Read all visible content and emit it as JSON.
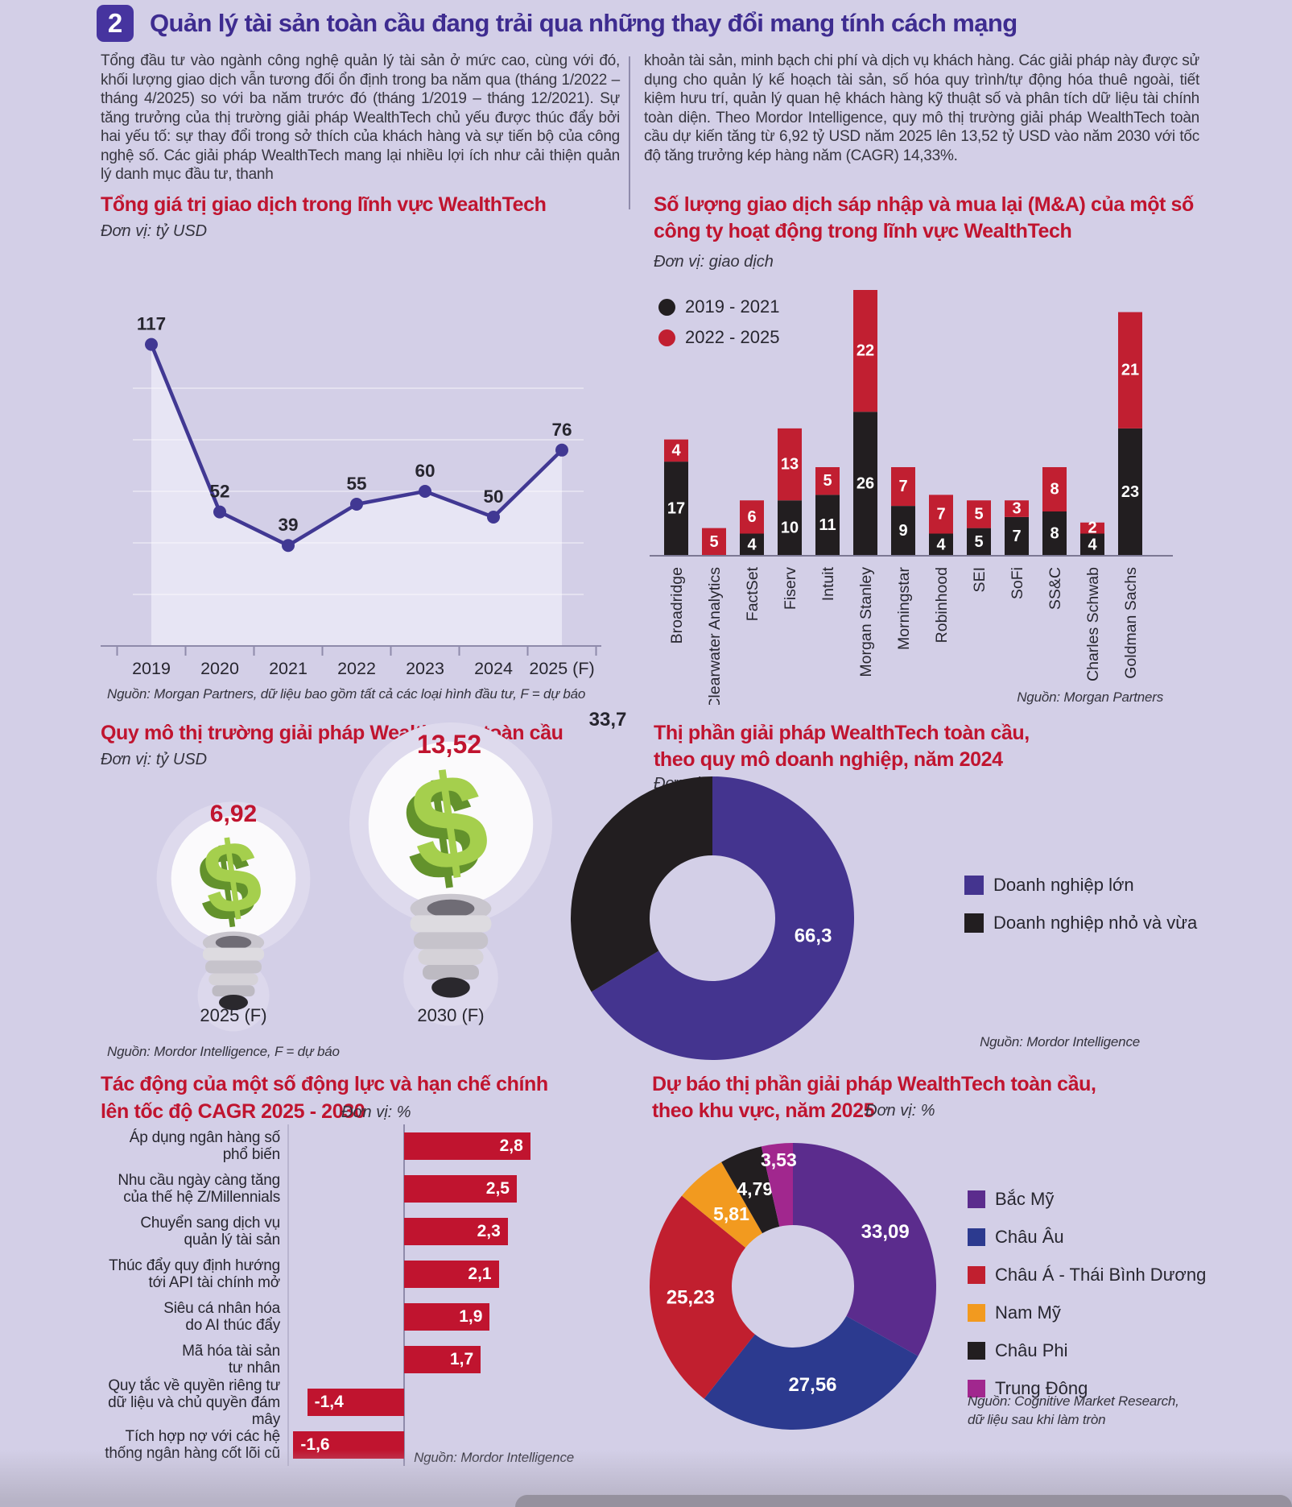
{
  "page": {
    "background": "#d3cfe7",
    "accent_purple": "#3e2c90",
    "accent_red": "#c0142f"
  },
  "header": {
    "badge": "2",
    "title": "Quản lý tài sản toàn cầu đang trải qua những thay đổi mang tính cách mạng"
  },
  "intro": {
    "col1": "Tổng đầu tư vào ngành công nghệ quản lý tài sản ở mức cao, cùng với đó, khối lượng giao dịch vẫn tương đối ổn định trong ba năm qua (tháng 1/2022 – tháng 4/2025) so với ba năm trước đó (tháng 1/2019 – tháng 12/2021). Sự tăng trưởng của thị trường giải pháp WealthTech chủ yếu được thúc đẩy bởi hai yếu tố: sự thay đổi trong sở thích của khách hàng và sự tiến bộ của công nghệ số. Các giải pháp WealthTech mang lại nhiều lợi ích như cải thiện quản lý danh mục đầu tư, thanh",
    "col2": "khoản tài sản, minh bạch chi phí và dịch vụ khách hàng. Các giải pháp này được sử dụng cho quản lý kế hoạch tài sản, số hóa quy trình/tự động hóa thuê ngoài, tiết kiệm hưu trí, quản lý quan hệ khách hàng kỹ thuật số và phân tích dữ liệu tài chính toàn diện. Theo Mordor Intelligence, quy mô thị trường giải pháp WealthTech toàn cầu dự kiến tăng từ 6,92 tỷ USD năm 2025 lên 13,52 tỷ USD vào năm 2030 với tốc độ tăng trưởng kép hàng năm (CAGR) 14,33%."
  },
  "chart_data": [
    {
      "id": "deals_value",
      "type": "line",
      "title": "Tổng giá trị giao dịch trong lĩnh vực WealthTech",
      "unit": "Đơn vị: tỷ USD",
      "source": "Nguồn: Morgan Partners, dữ liệu bao gồm tất cả các loại hình đầu tư, F = dự báo",
      "categories": [
        "2019",
        "2020",
        "2021",
        "2022",
        "2023",
        "2024",
        "2025 (F)"
      ],
      "values": [
        117,
        52,
        39,
        55,
        60,
        50,
        76
      ],
      "ylim": [
        0,
        120
      ],
      "grid_step": 20,
      "line_color": "#413893",
      "area_color": "#e7e5f4"
    },
    {
      "id": "ma_deals",
      "type": "bar",
      "stacked": true,
      "title": "Số lượng giao dịch sáp nhập và mua lại (M&A) của một số công ty hoạt động trong lĩnh vực WealthTech",
      "title_lines": [
        "Số lượng giao dịch sáp nhập và mua lại (M&A) của một số",
        "công ty hoạt động trong lĩnh vực WealthTech"
      ],
      "unit": "Đơn vị: giao dịch",
      "source": "Nguồn: Morgan Partners",
      "categories": [
        "Broadridge",
        "Clearwater Analytics",
        "FactSet",
        "Fiserv",
        "Intuit",
        "Morgan Stanley",
        "Morningstar",
        "Robinhood",
        "SEI",
        "SoFi",
        "SS&C",
        "Charles Schwab",
        "Goldman Sachs"
      ],
      "series": [
        {
          "name": "2019 - 2021",
          "color": "#221e20",
          "values": [
            17,
            0,
            4,
            10,
            11,
            26,
            9,
            4,
            5,
            7,
            8,
            4,
            23
          ]
        },
        {
          "name": "2022 - 2025",
          "color": "#c11f31",
          "values": [
            4,
            5,
            6,
            13,
            5,
            22,
            7,
            7,
            5,
            3,
            8,
            2,
            21
          ]
        }
      ]
    },
    {
      "id": "market_size",
      "type": "pictorial",
      "title": "Quy mô thị trường giải pháp WealthTech toàn cầu",
      "unit": "Đơn vị: tỷ USD",
      "source": "Nguồn: Mordor Intelligence, F = dự báo",
      "items": [
        {
          "label": "2025 (F)",
          "value": 6.92,
          "value_label": "6,92"
        },
        {
          "label": "2030 (F)",
          "value": 13.52,
          "value_label": "13,52"
        }
      ]
    },
    {
      "id": "share_by_size",
      "type": "pie",
      "title": "Thị phần giải pháp WealthTech toàn cầu, theo quy mô doanh nghiệp, năm 2024",
      "title_lines": [
        "Thị phần giải pháp WealthTech toàn cầu,",
        "theo quy mô doanh nghiệp, năm 2024"
      ],
      "unit": "Đơn vị: %",
      "source": "Nguồn: Mordor Intelligence",
      "slices": [
        {
          "label": "Doanh nghiệp lớn",
          "value": 66.3,
          "value_label": "66,3",
          "color": "#44348f"
        },
        {
          "label": "Doanh nghiệp nhỏ và vừa",
          "value": 33.7,
          "value_label": "33,7",
          "color": "#221e20"
        }
      ]
    },
    {
      "id": "cagr_drivers",
      "type": "bar",
      "orientation": "horizontal",
      "title": "Tác động của một số động lực và hạn chế chính lên tốc độ CAGR 2025 - 2030",
      "title_lines": [
        "Tác động của một số động lực và hạn chế chính",
        "lên tốc độ CAGR 2025 - 2030"
      ],
      "unit": "Đơn vị: %",
      "source": "Nguồn: Mordor Intelligence",
      "bar_color": "#c0142f",
      "categories": [
        "Áp dụng ngân hàng số\nphổ biến",
        "Nhu cầu ngày càng tăng\ncủa thế hệ Z/Millennials",
        "Chuyển sang dịch vụ\nquản lý tài sản",
        "Thúc đẩy quy định hướng\ntới API tài chính mở",
        "Siêu cá nhân hóa\ndo AI thúc đẩy",
        "Mã hóa tài sản\ntư nhân",
        "Quy tắc về quyền riêng tư\ndữ liệu và chủ quyền đám mây",
        "Tích hợp nợ với các hệ\nthống ngân hàng cốt lõi cũ"
      ],
      "values": [
        2.8,
        2.5,
        2.3,
        2.1,
        1.9,
        1.7,
        -1.4,
        -1.6
      ],
      "value_labels": [
        "2,8",
        "2,5",
        "2,3",
        "2,1",
        "1,9",
        "1,7",
        "-1,4",
        "-1,6"
      ]
    },
    {
      "id": "share_by_region",
      "type": "pie",
      "title": "Dự báo thị phần giải pháp WealthTech toàn cầu, theo khu vực, năm 2025",
      "title_lines": [
        "Dự báo thị phần giải pháp WealthTech toàn cầu,",
        "theo khu vực, năm 2025"
      ],
      "unit": "Đơn vị: %",
      "source_lines": [
        "Nguồn: Cognitive Market Research,",
        "dữ liệu sau khi làm tròn"
      ],
      "slices": [
        {
          "label": "Bắc Mỹ",
          "value": 33.09,
          "value_label": "33,09",
          "color": "#5b2c8d"
        },
        {
          "label": "Châu Âu",
          "value": 27.56,
          "value_label": "27,56",
          "color": "#2c3a8f"
        },
        {
          "label": "Châu Á - Thái Bình Dương",
          "value": 25.23,
          "value_label": "25,23",
          "color": "#c11f2f"
        },
        {
          "label": "Nam Mỹ",
          "value": 5.81,
          "value_label": "5,81",
          "color": "#f29a1f"
        },
        {
          "label": "Châu Phi",
          "value": 4.79,
          "value_label": "4,79",
          "color": "#221e20"
        },
        {
          "label": "Trung Đông",
          "value": 3.53,
          "value_label": "3,53",
          "color": "#a1278e"
        }
      ]
    }
  ]
}
